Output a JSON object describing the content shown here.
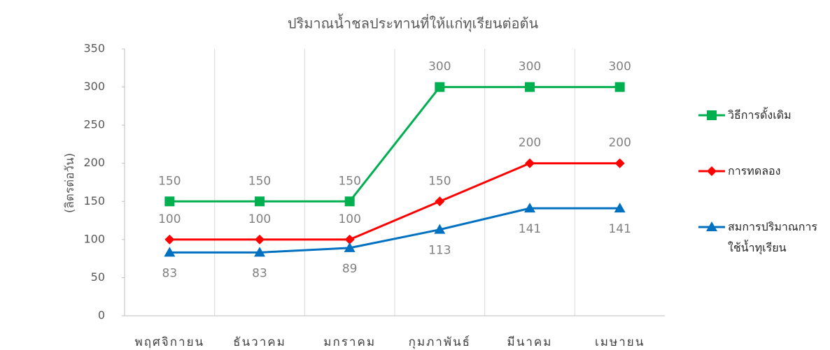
{
  "chart_data": {
    "type": "line",
    "title": "ปริมาณน้ำชลประทานที่ให้แก่ทุเรียนต่อต้น",
    "y_label": "(ลิตรต่อวัน)",
    "categories": [
      "พฤศจิกายน",
      "ธันวาคม",
      "มกราคม",
      "กุมภาพันธ์",
      "มีนาคม",
      "เมษายน"
    ],
    "series": [
      {
        "name": "วิธีการดั้งเดิม",
        "color": "#00b050",
        "marker": "square",
        "label_position": "above",
        "values": [
          150,
          150,
          150,
          300,
          300,
          300
        ]
      },
      {
        "name": "การทดลอง",
        "color": "#ff0000",
        "marker": "diamond",
        "label_position": "above",
        "values": [
          100,
          100,
          100,
          150,
          200,
          200
        ]
      },
      {
        "name": "สมการปริมาณการใช้น้ำทุเรียน",
        "color": "#0070c0",
        "marker": "triangle",
        "label_position": "below",
        "values": [
          83,
          83,
          89,
          113,
          141,
          141
        ]
      }
    ],
    "ylim": [
      0,
      350
    ],
    "yticks": [
      0,
      50,
      100,
      150,
      200,
      250,
      300,
      350
    ],
    "legend": "right"
  }
}
